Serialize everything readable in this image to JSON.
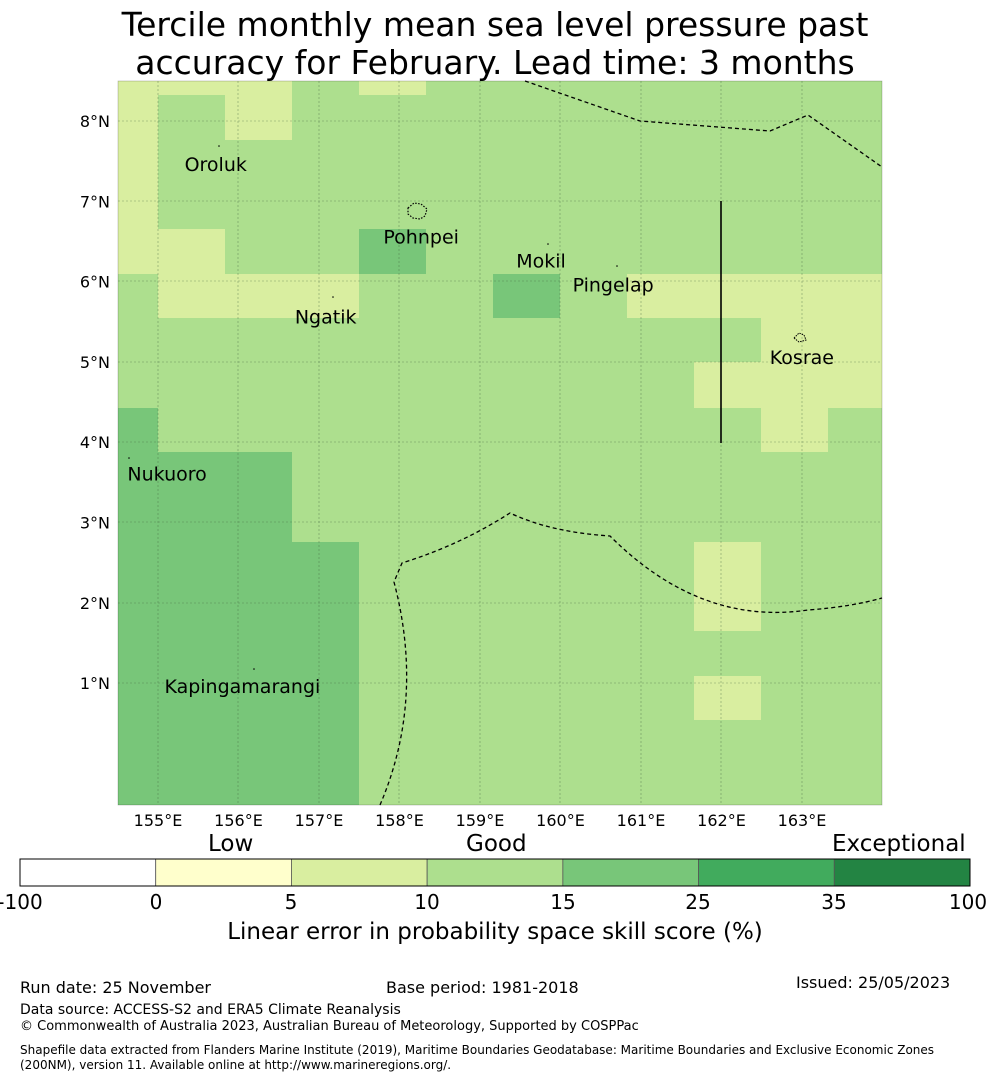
{
  "title_line1": "Tercile monthly mean sea level pressure past",
  "title_line2": "accuracy for February. Lead time: 3 months",
  "map": {
    "lon_range": [
      154.5,
      164.0
    ],
    "lat_range": [
      -0.2,
      8.5
    ],
    "lon_ticks": [
      {
        "value": 155,
        "label": "155°E"
      },
      {
        "value": 156,
        "label": "156°E"
      },
      {
        "value": 157,
        "label": "157°E"
      },
      {
        "value": 158,
        "label": "158°E"
      },
      {
        "value": 159,
        "label": "159°E"
      },
      {
        "value": 160,
        "label": "160°E"
      },
      {
        "value": 161,
        "label": "161°E"
      },
      {
        "value": 162,
        "label": "162°E"
      },
      {
        "value": 163,
        "label": "163°E"
      }
    ],
    "lat_ticks": [
      {
        "value": 8,
        "label": "8°N"
      },
      {
        "value": 7,
        "label": "7°N"
      },
      {
        "value": 6,
        "label": "6°N"
      },
      {
        "value": 5,
        "label": "5°N"
      },
      {
        "value": 4,
        "label": "4°N"
      },
      {
        "value": 3,
        "label": "3°N"
      },
      {
        "value": 2,
        "label": "2°N"
      },
      {
        "value": 1,
        "label": "1°N"
      }
    ],
    "place_labels": [
      {
        "name": "Oroluk",
        "lon": 155.33,
        "lat": 7.45
      },
      {
        "name": "Pohnpei",
        "lon": 157.8,
        "lat": 6.55
      },
      {
        "name": "Mokil",
        "lon": 159.45,
        "lat": 6.25
      },
      {
        "name": "Pingelap",
        "lon": 160.15,
        "lat": 5.95
      },
      {
        "name": "Ngatik",
        "lon": 156.7,
        "lat": 5.55
      },
      {
        "name": "Kosrae",
        "lon": 162.6,
        "lat": 5.05
      },
      {
        "name": "Nukuoro",
        "lon": 154.62,
        "lat": 3.6
      },
      {
        "name": "Kapingamarangi",
        "lon": 155.08,
        "lat": 0.95
      }
    ]
  },
  "skill_colors": {
    "low": "#d9eea0",
    "good": "#addf8e",
    "good_high": "#78c679",
    "very_good": "#41ab5d",
    "exceptional": "#238443"
  },
  "colorbar": {
    "categories": [
      {
        "label": "Low",
        "position": "over 0–10"
      },
      {
        "label": "Good",
        "position": "over 10–25"
      },
      {
        "label": "Exceptional",
        "position": "over 35–100"
      }
    ],
    "segments": [
      {
        "from": -100,
        "to": 0,
        "color": "#ffffff"
      },
      {
        "from": 0,
        "to": 5,
        "color": "#ffffcc"
      },
      {
        "from": 5,
        "to": 10,
        "color": "#d9eea0"
      },
      {
        "from": 10,
        "to": 15,
        "color": "#addf8e"
      },
      {
        "from": 15,
        "to": 25,
        "color": "#78c679"
      },
      {
        "from": 25,
        "to": 35,
        "color": "#41ab5d"
      },
      {
        "from": 35,
        "to": 100,
        "color": "#238443"
      }
    ],
    "tick_labels": [
      "-100",
      "0",
      "5",
      "10",
      "15",
      "25",
      "35",
      "100"
    ],
    "label": "Linear error in probability space skill score (%)"
  },
  "footer": {
    "run_date": "Run date: 25 November",
    "base_period": "Base period: 1981-2018",
    "issued": "Issued: 25/05/2023",
    "data_source": "Data source: ACCESS-S2 and ERA5 Climate Reanalysis",
    "copyright": "© Commonwealth of Australia 2023, Australian Bureau of Meteorology, Supported by COSPPac",
    "shapefile": "Shapefile data extracted from Flanders Marine Institute (2019), Maritime Boundaries Geodatabase: Maritime Boundaries and Exclusive Economic Zones (200NM), version 11. Available online at http://www.marineregions.org/."
  }
}
